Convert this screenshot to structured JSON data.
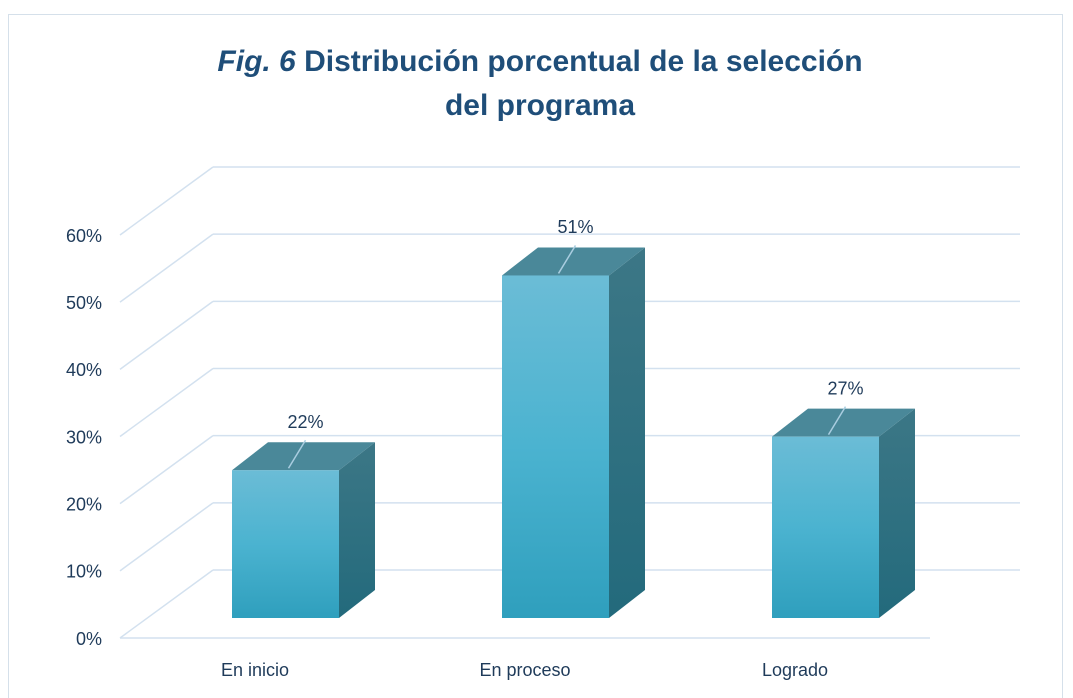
{
  "chart_data": {
    "type": "bar3d",
    "title": {
      "label": "Fig. 6",
      "text": "Distribución porcentual de la selección del programa"
    },
    "categories": [
      "En inicio",
      "En proceso",
      "Logrado"
    ],
    "values": [
      22,
      51,
      27
    ],
    "value_labels": [
      "22%",
      "51%",
      "27%"
    ],
    "color": "#4bb3d0",
    "ylim": [
      0,
      60
    ],
    "yticks": [
      {
        "value": 0,
        "label": "0%"
      },
      {
        "value": 10,
        "label": "10%"
      },
      {
        "value": 20,
        "label": "20%"
      },
      {
        "value": 30,
        "label": "30%"
      },
      {
        "value": 40,
        "label": "40%"
      },
      {
        "value": 50,
        "label": "50%"
      },
      {
        "value": 60,
        "label": "60%"
      }
    ],
    "grid": true
  }
}
